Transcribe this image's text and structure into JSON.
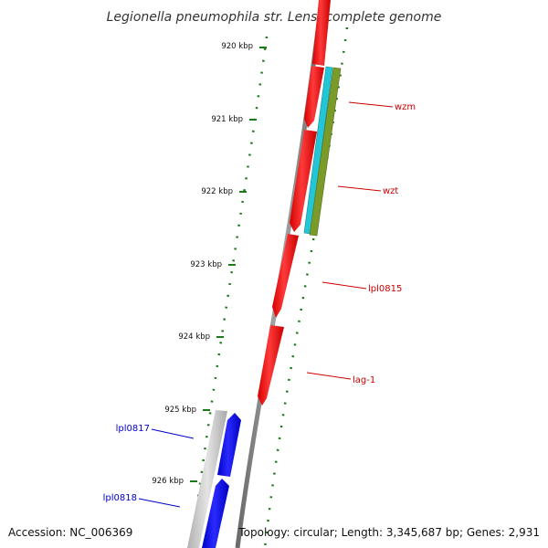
{
  "title": "Legionella pneumophila str. Lens, complete genome",
  "footer": {
    "accession": "Accession: NC_006369",
    "summary": "Topology: circular; Length: 3,345,687 bp; Genes: 2,931"
  },
  "ruler": {
    "color": "#1a7a1a",
    "ticks": [
      {
        "label": "920 kbp"
      },
      {
        "label": "921 kbp"
      },
      {
        "label": "922 kbp"
      },
      {
        "label": "923 kbp"
      },
      {
        "label": "924 kbp"
      },
      {
        "label": "925 kbp"
      },
      {
        "label": "926 kbp"
      }
    ]
  },
  "genes": [
    {
      "name": "wzm",
      "color": "#cc0000"
    },
    {
      "name": "wzt",
      "color": "#cc0000"
    },
    {
      "name": "lpl0815",
      "color": "#cc0000"
    },
    {
      "name": "lag-1",
      "color": "#cc0000"
    },
    {
      "name": "lpl0817",
      "color": "#0000cc"
    },
    {
      "name": "lpl0818",
      "color": "#0000cc"
    }
  ],
  "colors": {
    "backbone": "#8a8a8a",
    "forward_feature": "#ff0000",
    "reverse_feature": "#0000ff",
    "cyan_feature": "#22c6d6",
    "olive_feature": "#7a9a2a",
    "gray_feature": "#c8c8c8"
  }
}
